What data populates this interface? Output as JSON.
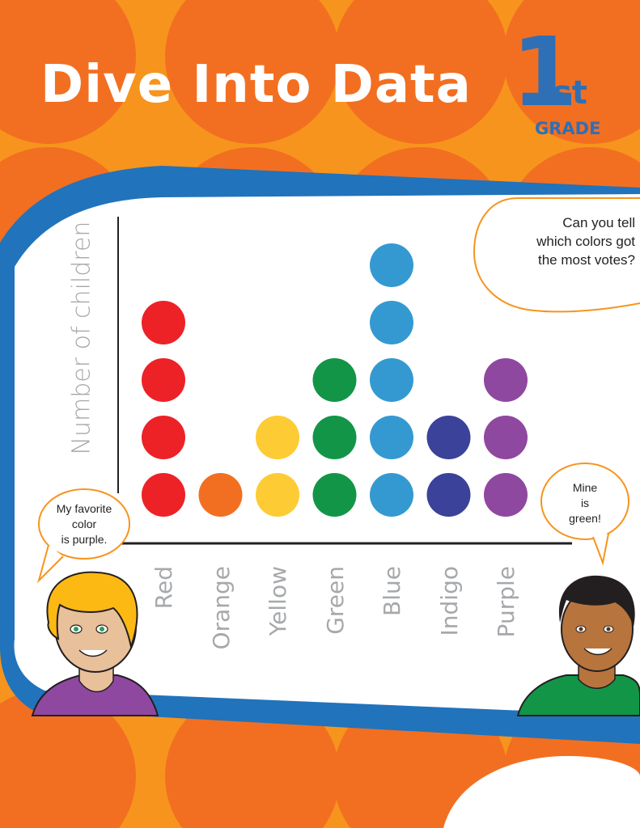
{
  "header": {
    "title": "Dive Into Data",
    "grade_number": "1",
    "grade_suffix": "st",
    "grade_word": "GRADE"
  },
  "chart_data": {
    "type": "scatter",
    "ylabel": "Number of children",
    "xlabel": "",
    "categories": [
      "Red",
      "Orange",
      "Yellow",
      "Green",
      "Blue",
      "Indigo",
      "Purple"
    ],
    "values": [
      4,
      1,
      2,
      3,
      5,
      2,
      3
    ],
    "colors": [
      "#ec2227",
      "#f26f21",
      "#fdcb33",
      "#139547",
      "#3499d1",
      "#3b4299",
      "#8f48a0"
    ],
    "ylim": [
      0,
      5
    ],
    "grid": false
  },
  "bubbles": {
    "question": [
      "Can you tell",
      "which colors got",
      "the most votes?"
    ],
    "girl": [
      "My favorite",
      "color",
      "is purple."
    ],
    "boy": [
      "Mine",
      "is",
      "green!"
    ]
  }
}
